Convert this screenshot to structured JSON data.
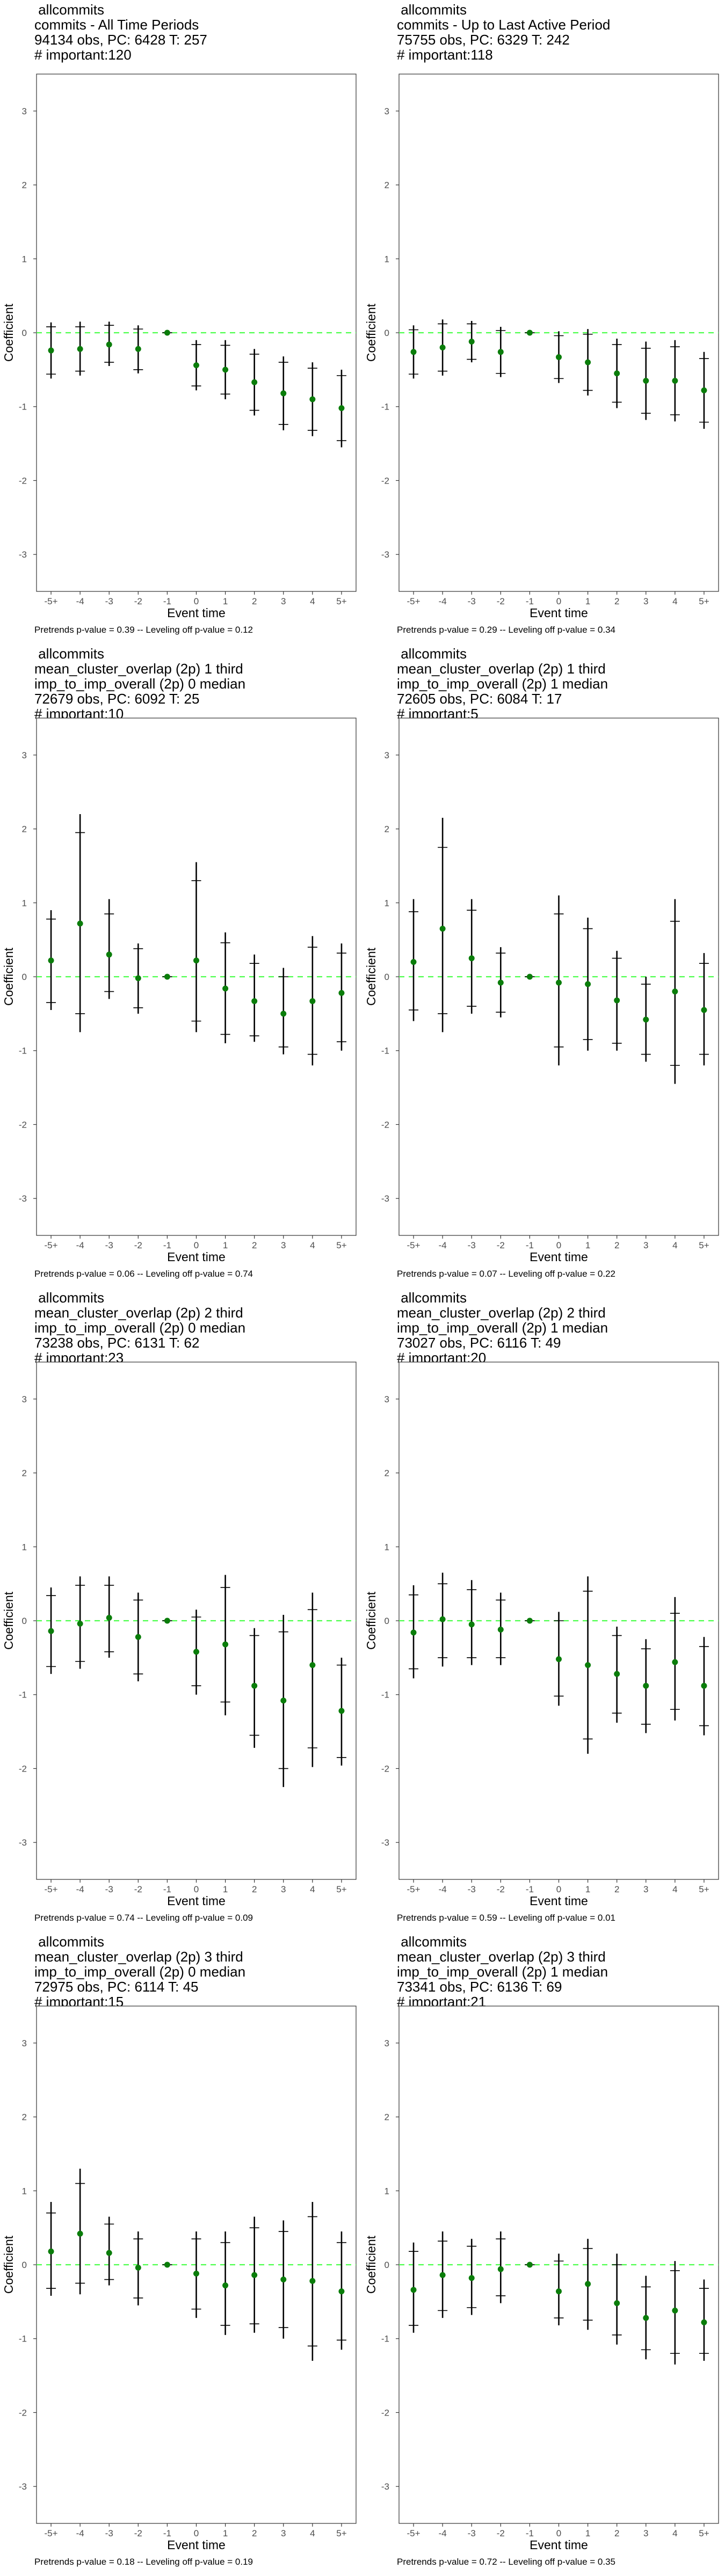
{
  "layout": {
    "columns": 2,
    "rows": 4
  },
  "panels": [
    {
      "title_lines": [
        "allcommits",
        "commits - All Time Periods",
        "94134 obs, PC: 6428 T: 257",
        "# important:120"
      ],
      "footer": "Pretrends p-value = 0.39 -- Leveling off p-value = 0.12",
      "chart_data": {
        "type": "scatter",
        "xlabel": "Event time",
        "ylabel": "Coefficient",
        "categories": [
          "-5+",
          "-4",
          "-3",
          "-2",
          "-1",
          "0",
          "1",
          "2",
          "3",
          "4",
          "5+"
        ],
        "ylim": [
          -3.5,
          3.5
        ],
        "yticks": [
          -3,
          -2,
          -1,
          0,
          1,
          2,
          3
        ],
        "reference_line": 0,
        "reference_color": "#4cff4c",
        "point_color": "#0a7d0a",
        "series": [
          {
            "estimate": [
              -0.24,
              -0.22,
              -0.16,
              -0.22,
              0,
              -0.44,
              -0.5,
              -0.67,
              -0.82,
              -0.9,
              -1.02
            ],
            "ci95_low": [
              -0.62,
              -0.58,
              -0.45,
              -0.55,
              0,
              -0.78,
              -0.9,
              -1.12,
              -1.32,
              -1.4,
              -1.55
            ],
            "ci95_high": [
              0.14,
              0.15,
              0.15,
              0.1,
              0,
              -0.1,
              -0.1,
              -0.22,
              -0.32,
              -0.4,
              -0.5
            ],
            "ci90_low": [
              -0.56,
              -0.52,
              -0.4,
              -0.5,
              0,
              -0.72,
              -0.83,
              -1.05,
              -1.24,
              -1.32,
              -1.46
            ],
            "ci90_high": [
              0.08,
              0.08,
              0.1,
              0.05,
              0,
              -0.16,
              -0.17,
              -0.29,
              -0.4,
              -0.48,
              -0.58
            ]
          }
        ]
      }
    },
    {
      "title_lines": [
        "allcommits",
        "commits - Up to Last Active Period",
        "75755 obs, PC: 6329 T: 242",
        "# important:118"
      ],
      "footer": "Pretrends p-value = 0.29 -- Leveling off p-value = 0.34",
      "chart_data": {
        "type": "scatter",
        "xlabel": "Event time",
        "ylabel": "Coefficient",
        "categories": [
          "-5+",
          "-4",
          "-3",
          "-2",
          "-1",
          "0",
          "1",
          "2",
          "3",
          "4",
          "5+"
        ],
        "ylim": [
          -3.5,
          3.5
        ],
        "yticks": [
          -3,
          -2,
          -1,
          0,
          1,
          2,
          3
        ],
        "reference_line": 0,
        "reference_color": "#4cff4c",
        "point_color": "#0a7d0a",
        "series": [
          {
            "estimate": [
              -0.26,
              -0.2,
              -0.12,
              -0.26,
              0,
              -0.33,
              -0.4,
              -0.55,
              -0.65,
              -0.65,
              -0.78
            ],
            "ci95_low": [
              -0.62,
              -0.58,
              -0.4,
              -0.6,
              0,
              -0.68,
              -0.85,
              -1.02,
              -1.18,
              -1.2,
              -1.3
            ],
            "ci95_high": [
              0.1,
              0.18,
              0.16,
              0.08,
              0,
              0.02,
              0.05,
              -0.08,
              -0.12,
              -0.1,
              -0.26
            ],
            "ci90_low": [
              -0.56,
              -0.52,
              -0.36,
              -0.55,
              0,
              -0.62,
              -0.78,
              -0.94,
              -1.09,
              -1.11,
              -1.21
            ],
            "ci90_high": [
              0.04,
              0.12,
              0.12,
              0.03,
              0,
              -0.04,
              -0.02,
              -0.16,
              -0.21,
              -0.19,
              -0.35
            ]
          }
        ]
      }
    },
    {
      "title_lines": [
        "allcommits",
        "mean_cluster_overlap (2p) 1 third",
        "imp_to_imp_overall (2p) 0 median",
        "72679 obs, PC: 6092 T: 25",
        "# important:10"
      ],
      "footer": "Pretrends p-value = 0.06 -- Leveling off p-value = 0.74",
      "chart_data": {
        "type": "scatter",
        "xlabel": "Event time",
        "ylabel": "Coefficient",
        "categories": [
          "-5+",
          "-4",
          "-3",
          "-2",
          "-1",
          "0",
          "1",
          "2",
          "3",
          "4",
          "5+"
        ],
        "ylim": [
          -3.5,
          3.5
        ],
        "yticks": [
          -3,
          -2,
          -1,
          0,
          1,
          2,
          3
        ],
        "reference_line": 0,
        "reference_color": "#4cff4c",
        "point_color": "#0a7d0a",
        "series": [
          {
            "estimate": [
              0.22,
              0.72,
              0.3,
              -0.02,
              0,
              0.22,
              -0.16,
              -0.33,
              -0.5,
              -0.33,
              -0.22
            ],
            "ci95_low": [
              -0.45,
              -0.75,
              -0.3,
              -0.5,
              0,
              -0.75,
              -0.9,
              -0.88,
              -1.05,
              -1.2,
              -1.0
            ],
            "ci95_high": [
              0.9,
              2.2,
              1.05,
              0.45,
              0,
              1.55,
              0.6,
              0.3,
              0.12,
              0.55,
              0.45
            ],
            "ci90_low": [
              -0.35,
              -0.5,
              -0.2,
              -0.42,
              0,
              -0.6,
              -0.78,
              -0.8,
              -0.95,
              -1.05,
              -0.88
            ],
            "ci90_high": [
              0.78,
              1.95,
              0.85,
              0.38,
              0,
              1.3,
              0.46,
              0.18,
              0.0,
              0.4,
              0.32
            ]
          }
        ]
      }
    },
    {
      "title_lines": [
        "allcommits",
        "mean_cluster_overlap (2p) 1 third",
        "imp_to_imp_overall (2p) 1 median",
        "72605 obs, PC: 6084 T: 17",
        "# important:5"
      ],
      "footer": "Pretrends p-value = 0.07 -- Leveling off p-value = 0.22",
      "chart_data": {
        "type": "scatter",
        "xlabel": "Event time",
        "ylabel": "Coefficient",
        "categories": [
          "-5+",
          "-4",
          "-3",
          "-2",
          "-1",
          "0",
          "1",
          "2",
          "3",
          "4",
          "5+"
        ],
        "ylim": [
          -3.5,
          3.5
        ],
        "yticks": [
          -3,
          -2,
          -1,
          0,
          1,
          2,
          3
        ],
        "reference_line": 0,
        "reference_color": "#4cff4c",
        "point_color": "#0a7d0a",
        "series": [
          {
            "estimate": [
              0.2,
              0.65,
              0.25,
              -0.08,
              0,
              -0.08,
              -0.1,
              -0.32,
              -0.58,
              -0.2,
              -0.45
            ],
            "ci95_low": [
              -0.6,
              -0.75,
              -0.5,
              -0.55,
              0,
              -1.2,
              -1.0,
              -1.0,
              -1.15,
              -1.45,
              -1.2
            ],
            "ci95_high": [
              1.05,
              2.15,
              1.05,
              0.4,
              0,
              1.1,
              0.8,
              0.35,
              0.0,
              1.05,
              0.32
            ],
            "ci90_low": [
              -0.45,
              -0.5,
              -0.4,
              -0.48,
              0,
              -0.95,
              -0.85,
              -0.9,
              -1.05,
              -1.2,
              -1.05
            ],
            "ci90_high": [
              0.88,
              1.75,
              0.9,
              0.32,
              0,
              0.85,
              0.65,
              0.25,
              -0.1,
              0.75,
              0.18
            ]
          }
        ]
      }
    },
    {
      "title_lines": [
        "allcommits",
        "mean_cluster_overlap (2p) 2 third",
        "imp_to_imp_overall (2p) 0 median",
        "73238 obs, PC: 6131 T: 62",
        "# important:23"
      ],
      "footer": "Pretrends p-value = 0.74 -- Leveling off p-value = 0.09",
      "chart_data": {
        "type": "scatter",
        "xlabel": "Event time",
        "ylabel": "Coefficient",
        "categories": [
          "-5+",
          "-4",
          "-3",
          "-2",
          "-1",
          "0",
          "1",
          "2",
          "3",
          "4",
          "5+"
        ],
        "ylim": [
          -3.5,
          3.5
        ],
        "yticks": [
          -3,
          -2,
          -1,
          0,
          1,
          2,
          3
        ],
        "reference_line": 0,
        "reference_color": "#4cff4c",
        "point_color": "#0a7d0a",
        "series": [
          {
            "estimate": [
              -0.14,
              -0.04,
              0.04,
              -0.22,
              0,
              -0.42,
              -0.32,
              -0.88,
              -1.08,
              -0.6,
              -1.22
            ],
            "ci95_low": [
              -0.72,
              -0.65,
              -0.5,
              -0.82,
              0,
              -1.0,
              -1.28,
              -1.72,
              -2.25,
              -1.98,
              -1.96
            ],
            "ci95_high": [
              0.45,
              0.6,
              0.6,
              0.38,
              0,
              0.15,
              0.62,
              -0.1,
              0.08,
              0.38,
              -0.5
            ],
            "ci90_low": [
              -0.62,
              -0.55,
              -0.42,
              -0.72,
              0,
              -0.88,
              -1.1,
              -1.55,
              -2.0,
              -1.72,
              -1.85
            ],
            "ci90_high": [
              0.34,
              0.48,
              0.48,
              0.28,
              0,
              0.05,
              0.45,
              -0.2,
              -0.15,
              0.15,
              -0.6
            ]
          }
        ]
      }
    },
    {
      "title_lines": [
        "allcommits",
        "mean_cluster_overlap (2p) 2 third",
        "imp_to_imp_overall (2p) 1 median",
        "73027 obs, PC: 6116 T: 49",
        "# important:20"
      ],
      "footer": "Pretrends p-value = 0.59 -- Leveling off p-value = 0.01",
      "chart_data": {
        "type": "scatter",
        "xlabel": "Event time",
        "ylabel": "Coefficient",
        "categories": [
          "-5+",
          "-4",
          "-3",
          "-2",
          "-1",
          "0",
          "1",
          "2",
          "3",
          "4",
          "5+"
        ],
        "ylim": [
          -3.5,
          3.5
        ],
        "yticks": [
          -3,
          -2,
          -1,
          0,
          1,
          2,
          3
        ],
        "reference_line": 0,
        "reference_color": "#4cff4c",
        "point_color": "#0a7d0a",
        "series": [
          {
            "estimate": [
              -0.16,
              0.02,
              -0.05,
              -0.12,
              0,
              -0.52,
              -0.6,
              -0.72,
              -0.88,
              -0.56,
              -0.88
            ],
            "ci95_low": [
              -0.78,
              -0.62,
              -0.6,
              -0.6,
              0,
              -1.15,
              -1.8,
              -1.38,
              -1.52,
              -1.35,
              -1.55
            ],
            "ci95_high": [
              0.48,
              0.65,
              0.55,
              0.38,
              0,
              0.12,
              0.6,
              -0.08,
              -0.25,
              0.32,
              -0.22
            ],
            "ci90_low": [
              -0.65,
              -0.5,
              -0.5,
              -0.5,
              0,
              -1.02,
              -1.6,
              -1.25,
              -1.4,
              -1.2,
              -1.42
            ],
            "ci90_high": [
              0.35,
              0.5,
              0.42,
              0.28,
              0,
              0.0,
              0.4,
              -0.2,
              -0.38,
              0.1,
              -0.35
            ]
          }
        ]
      }
    },
    {
      "title_lines": [
        "allcommits",
        "mean_cluster_overlap (2p) 3 third",
        "imp_to_imp_overall (2p) 0 median",
        "72975 obs, PC: 6114 T: 45",
        "# important:15"
      ],
      "footer": "Pretrends p-value = 0.18 -- Leveling off p-value = 0.19",
      "chart_data": {
        "type": "scatter",
        "xlabel": "Event time",
        "ylabel": "Coefficient",
        "categories": [
          "-5+",
          "-4",
          "-3",
          "-2",
          "-1",
          "0",
          "1",
          "2",
          "3",
          "4",
          "5+"
        ],
        "ylim": [
          -3.5,
          3.5
        ],
        "yticks": [
          -3,
          -2,
          -1,
          0,
          1,
          2,
          3
        ],
        "reference_line": 0,
        "reference_color": "#4cff4c",
        "point_color": "#0a7d0a",
        "series": [
          {
            "estimate": [
              0.18,
              0.42,
              0.16,
              -0.04,
              0,
              -0.12,
              -0.28,
              -0.14,
              -0.2,
              -0.22,
              -0.36
            ],
            "ci95_low": [
              -0.42,
              -0.4,
              -0.28,
              -0.55,
              0,
              -0.72,
              -0.95,
              -0.92,
              -1.0,
              -1.3,
              -1.15
            ],
            "ci95_high": [
              0.85,
              1.3,
              0.65,
              0.45,
              0,
              0.45,
              0.45,
              0.65,
              0.6,
              0.85,
              0.45
            ],
            "ci90_low": [
              -0.32,
              -0.25,
              -0.2,
              -0.45,
              0,
              -0.6,
              -0.82,
              -0.8,
              -0.85,
              -1.1,
              -1.02
            ],
            "ci90_high": [
              0.7,
              1.1,
              0.55,
              0.35,
              0,
              0.35,
              0.3,
              0.5,
              0.45,
              0.65,
              0.3
            ]
          }
        ]
      }
    },
    {
      "title_lines": [
        "allcommits",
        "mean_cluster_overlap (2p) 3 third",
        "imp_to_imp_overall (2p) 1 median",
        "73341 obs, PC: 6136 T: 69",
        "# important:21"
      ],
      "footer": "Pretrends p-value = 0.72 -- Leveling off p-value = 0.35",
      "chart_data": {
        "type": "scatter",
        "xlabel": "Event time",
        "ylabel": "Coefficient",
        "categories": [
          "-5+",
          "-4",
          "-3",
          "-2",
          "-1",
          "0",
          "1",
          "2",
          "3",
          "4",
          "5+"
        ],
        "ylim": [
          -3.5,
          3.5
        ],
        "yticks": [
          -3,
          -2,
          -1,
          0,
          1,
          2,
          3
        ],
        "reference_line": 0,
        "reference_color": "#4cff4c",
        "point_color": "#0a7d0a",
        "series": [
          {
            "estimate": [
              -0.34,
              -0.14,
              -0.18,
              -0.06,
              0,
              -0.36,
              -0.26,
              -0.52,
              -0.72,
              -0.62,
              -0.78
            ],
            "ci95_low": [
              -0.92,
              -0.72,
              -0.68,
              -0.52,
              0,
              -0.82,
              -0.88,
              -1.08,
              -1.28,
              -1.35,
              -1.3
            ],
            "ci95_high": [
              0.3,
              0.45,
              0.35,
              0.45,
              0,
              0.15,
              0.35,
              0.15,
              -0.15,
              0.05,
              -0.2
            ],
            "ci90_low": [
              -0.82,
              -0.62,
              -0.58,
              -0.42,
              0,
              -0.72,
              -0.75,
              -0.95,
              -1.15,
              -1.2,
              -1.2
            ],
            "ci90_high": [
              0.18,
              0.32,
              0.25,
              0.35,
              0,
              0.05,
              0.22,
              0.0,
              -0.3,
              -0.08,
              -0.32
            ]
          }
        ]
      }
    }
  ]
}
